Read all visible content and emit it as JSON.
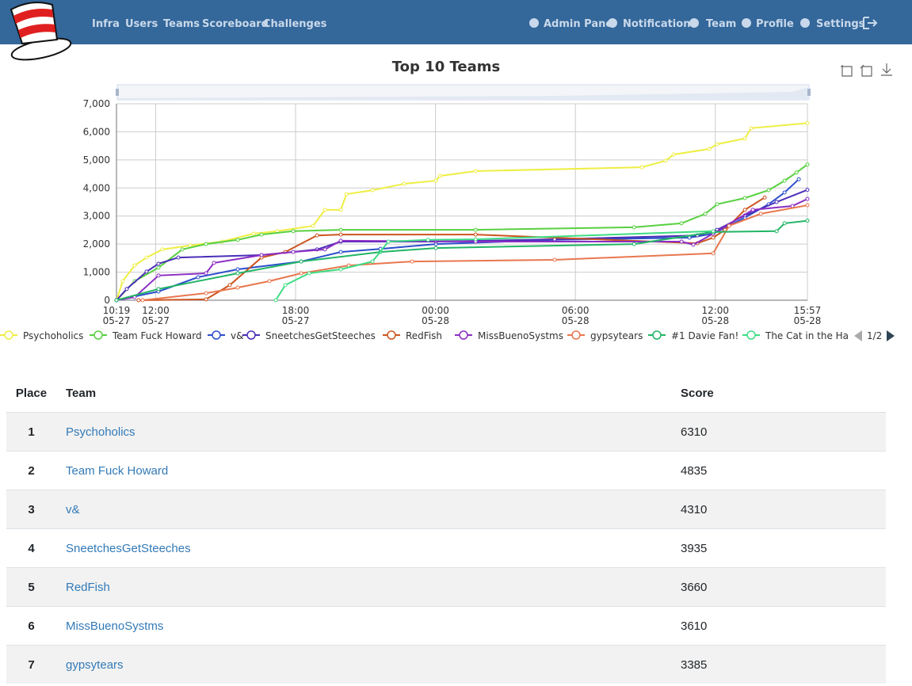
{
  "nav": {
    "links": [
      "Infra",
      "Users",
      "Teams",
      "Scoreboard",
      "Challenges"
    ],
    "right_links": [
      "Admin Panel",
      "Notifications",
      "Team",
      "Profile",
      "Settings"
    ]
  },
  "chart_data": {
    "type": "line",
    "title": "Top 10 Teams",
    "xlim": [
      10.32,
      39.95
    ],
    "xticks": [
      {
        "value": 10.32,
        "label": "10:19\n05-27"
      },
      {
        "value": 12,
        "label": "12:00\n05-27"
      },
      {
        "value": 18,
        "label": "18:00\n05-27"
      },
      {
        "value": 24,
        "label": "00:00\n05-28"
      },
      {
        "value": 30,
        "label": "06:00\n05-28"
      },
      {
        "value": 36,
        "label": "12:00\n05-28"
      },
      {
        "value": 39.95,
        "label": "15:57\n05-28"
      }
    ],
    "ylim": [
      0,
      7000
    ],
    "yticks": [
      0,
      {
        "value": 1000,
        "label": "1,000"
      },
      {
        "value": 2000,
        "label": "2,000"
      },
      {
        "value": 3000,
        "label": "3,000"
      },
      {
        "value": 4000,
        "label": "4,000"
      },
      {
        "value": 5000,
        "label": "5,000"
      },
      {
        "value": 6000,
        "label": "6,000"
      },
      {
        "value": 7000,
        "label": "7,000"
      }
    ],
    "grid": true,
    "legend_page": "1/2",
    "series": [
      {
        "name": "Psychoholics",
        "color": "#eeee44",
        "x": [
          10.32,
          10.59,
          11.1,
          11.61,
          12.29,
          13.48,
          14.84,
          16.2,
          17.22,
          18.75,
          19.26,
          19.94,
          20.18,
          21.3,
          22.66,
          24.02,
          24.19,
          25.72,
          32.85,
          33.87,
          34.21,
          35.74,
          36.08,
          37.27,
          37.54,
          39.95
        ],
        "values": [
          0,
          680,
          1240,
          1520,
          1810,
          1950,
          2090,
          2370,
          2460,
          2650,
          3220,
          3220,
          3780,
          3920,
          4150,
          4260,
          4430,
          4600,
          4740,
          4970,
          5190,
          5390,
          5560,
          5760,
          6130,
          6310
        ]
      },
      {
        "name": "Team Fuck Howard",
        "color": "#58d040",
        "x": [
          10.32,
          11.1,
          12.12,
          13.14,
          14.16,
          15.52,
          16.54,
          17.9,
          19.94,
          25.72,
          32.52,
          34.55,
          35.57,
          36.08,
          37.27,
          38.29,
          38.97,
          39.48,
          39.95
        ],
        "values": [
          0,
          680,
          1160,
          1810,
          2000,
          2150,
          2340,
          2460,
          2510,
          2510,
          2600,
          2740,
          3080,
          3420,
          3640,
          3920,
          4260,
          4550,
          4835
        ]
      },
      {
        "name": "v&",
        "color": "#2d4fcc",
        "x": [
          10.32,
          12.12,
          13.82,
          15.52,
          18.24,
          19.94,
          21.64,
          24.02,
          29.11,
          34.89,
          35.91,
          37.27,
          38.29,
          38.97,
          39.58
        ],
        "values": [
          0,
          310,
          820,
          1100,
          1380,
          1720,
          1830,
          2000,
          2150,
          2230,
          2370,
          2940,
          3420,
          3840,
          4310
        ]
      },
      {
        "name": "SneetchesGetSteeches",
        "color": "#4a2db8",
        "x": [
          10.32,
          10.76,
          11.61,
          12.12,
          12.97,
          16.54,
          18.92,
          19.94,
          24.02,
          29.11,
          35.23,
          36.08,
          37.27,
          38.63,
          39.95
        ],
        "values": [
          0,
          400,
          1020,
          1300,
          1520,
          1610,
          1810,
          2090,
          2090,
          2170,
          2310,
          2510,
          3020,
          3500,
          3935
        ]
      },
      {
        "name": "RedFish",
        "color": "#cc5520",
        "x": [
          11.27,
          14.16,
          15.18,
          16.54,
          17.56,
          18.92,
          19.94,
          25.72,
          35.23,
          35.91,
          36.42,
          37.27,
          38.12
        ],
        "values": [
          0,
          30,
          540,
          1520,
          1720,
          2310,
          2340,
          2340,
          2030,
          2230,
          2510,
          3220,
          3660
        ]
      },
      {
        "name": "MissBuenoSystms",
        "color": "#8b2ec4",
        "x": [
          10.32,
          11.1,
          12.12,
          14.16,
          14.5,
          16.54,
          17.9,
          19.26,
          19.94,
          25.72,
          34.55,
          35.06,
          35.91,
          37.61,
          39.31,
          39.95
        ],
        "values": [
          0,
          110,
          880,
          960,
          1330,
          1610,
          1720,
          1810,
          2120,
          2090,
          2090,
          1980,
          2370,
          3220,
          3360,
          3610
        ]
      },
      {
        "name": "gypsytears",
        "color": "#e8774e",
        "x": [
          11.44,
          14.16,
          15.52,
          16.88,
          18.24,
          20.28,
          23.0,
          29.11,
          35.91,
          36.59,
          37.95,
          39.95
        ],
        "values": [
          0,
          250,
          450,
          680,
          960,
          1240,
          1380,
          1440,
          1670,
          2650,
          3080,
          3385
        ]
      },
      {
        "name": "#1 Davie Fan!",
        "color": "#22b565",
        "x": [
          10.32,
          12.12,
          15.52,
          18.24,
          21.64,
          24.02,
          32.52,
          35.91,
          38.63,
          38.97,
          39.95
        ],
        "values": [
          0,
          400,
          960,
          1380,
          1720,
          1860,
          2000,
          2430,
          2460,
          2740,
          2835
        ]
      },
      {
        "name": "The Cat in the Hat",
        "color": "#3ddc84",
        "x": [
          17.15,
          17.56,
          18.58,
          19.94,
          21.3,
          21.98,
          23.68,
          25.72,
          35.91
        ],
        "values": [
          0,
          540,
          960,
          1100,
          1380,
          2090,
          2150,
          2170,
          2460
        ]
      }
    ]
  },
  "table": {
    "headers": [
      "Place",
      "Team",
      "Score"
    ],
    "rows": [
      [
        1,
        "Psychoholics",
        6310
      ],
      [
        2,
        "Team Fuck Howard",
        4835
      ],
      [
        3,
        "v&",
        4310
      ],
      [
        4,
        "SneetchesGetSteeches",
        3935
      ],
      [
        5,
        "RedFish",
        3660
      ],
      [
        6,
        "MissBuenoSystms",
        3610
      ],
      [
        7,
        "gypsytears",
        3385
      ]
    ]
  }
}
